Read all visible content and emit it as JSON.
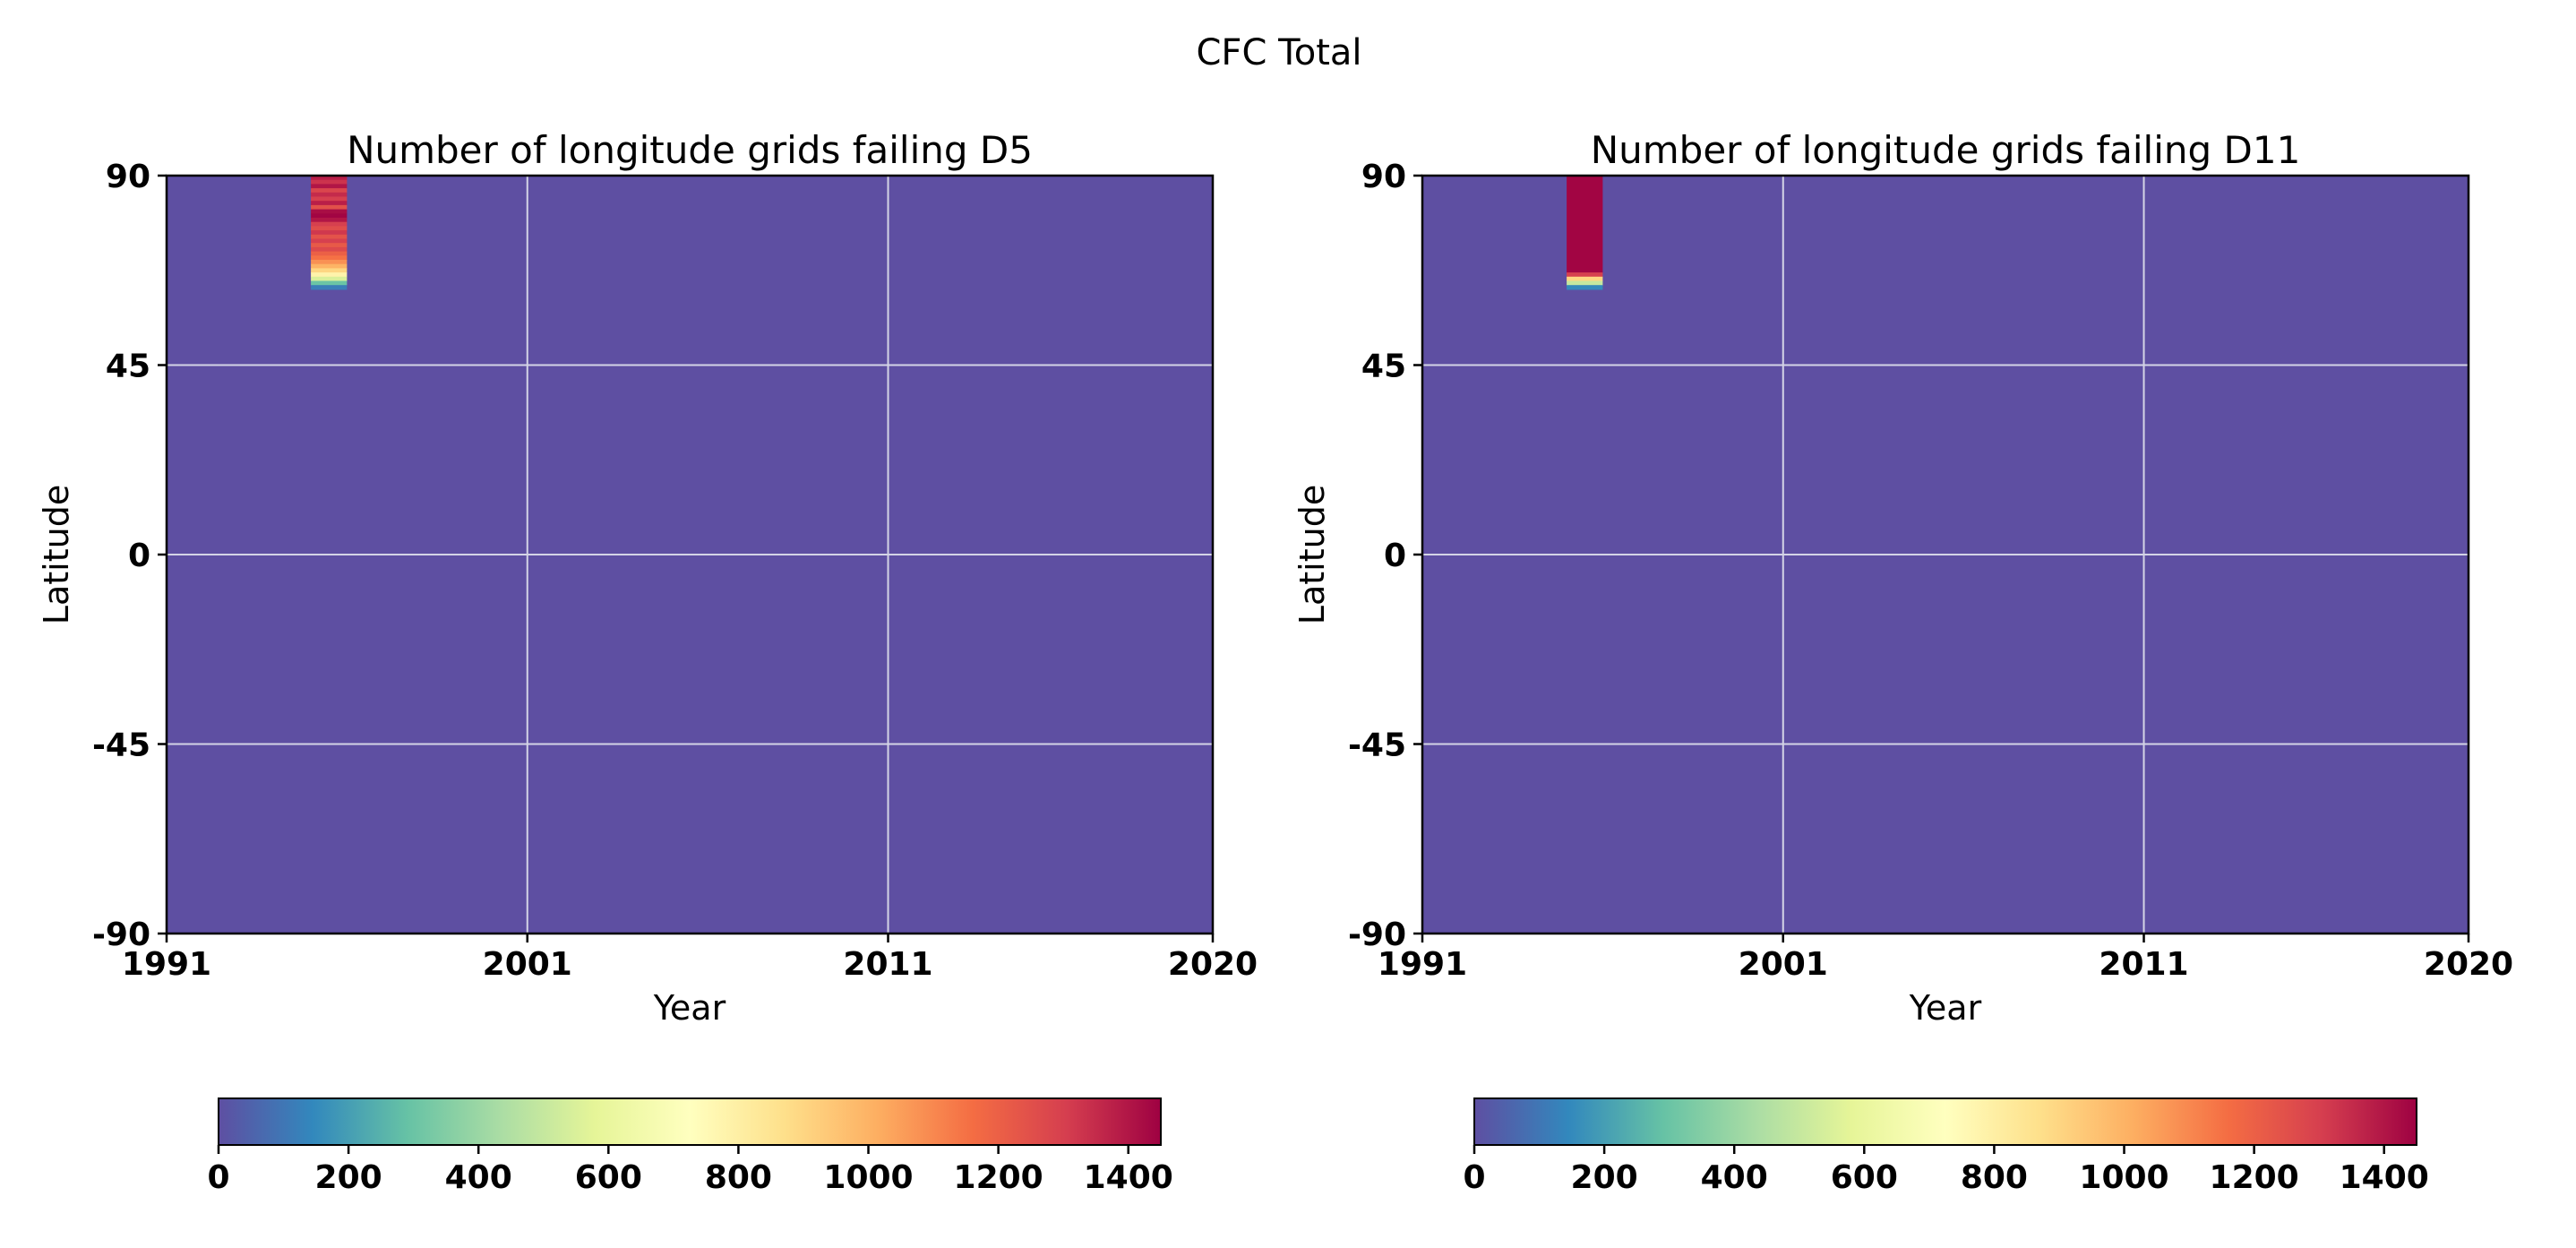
{
  "figure": {
    "suptitle": "CFC Total"
  },
  "colorbar": {
    "ticks": [
      "0",
      "200",
      "400",
      "600",
      "800",
      "1000",
      "1200",
      "1400"
    ],
    "tick_values": [
      0,
      200,
      400,
      600,
      800,
      1000,
      1200,
      1400
    ],
    "vmin": 0,
    "vmax": 1450,
    "colormap": "Spectral_r",
    "colormap_stops": [
      "#5e4fa2",
      "#3288bd",
      "#66c2a5",
      "#abdda4",
      "#e6f598",
      "#ffffbf",
      "#fee08b",
      "#fdae61",
      "#f46d43",
      "#d53e4f",
      "#9e0142"
    ]
  },
  "chart_data": [
    {
      "type": "heatmap",
      "title": "Number of longitude grids failing D5",
      "xlabel": "Year",
      "ylabel": "Latitude",
      "x_ticks": [
        "1991",
        "2001",
        "2011",
        "2020"
      ],
      "x_tick_values": [
        1991,
        2001,
        2011,
        2020
      ],
      "y_ticks": [
        "90",
        "45",
        "0",
        "-45",
        "-90"
      ],
      "y_tick_values": [
        90,
        45,
        0,
        -45,
        -90
      ],
      "xlim": [
        1991,
        2020
      ],
      "ylim": [
        -90,
        90
      ],
      "grid": true,
      "background_value": 0,
      "highlight_x": [
        1995.0,
        1996.0
      ],
      "bands": [
        {
          "lat": [
            89,
            90
          ],
          "value": 1380
        },
        {
          "lat": [
            88,
            89
          ],
          "value": 1330
        },
        {
          "lat": [
            87,
            88
          ],
          "value": 1400
        },
        {
          "lat": [
            86,
            87
          ],
          "value": 1280
        },
        {
          "lat": [
            85,
            86
          ],
          "value": 1350
        },
        {
          "lat": [
            84,
            85
          ],
          "value": 1300
        },
        {
          "lat": [
            83,
            84
          ],
          "value": 1380
        },
        {
          "lat": [
            82,
            83
          ],
          "value": 1250
        },
        {
          "lat": [
            81,
            82
          ],
          "value": 1420
        },
        {
          "lat": [
            80,
            81
          ],
          "value": 1440
        },
        {
          "lat": [
            79,
            80
          ],
          "value": 1400
        },
        {
          "lat": [
            78,
            79
          ],
          "value": 1300
        },
        {
          "lat": [
            77,
            78
          ],
          "value": 1260
        },
        {
          "lat": [
            76,
            77
          ],
          "value": 1320
        },
        {
          "lat": [
            75,
            76
          ],
          "value": 1240
        },
        {
          "lat": [
            74,
            75
          ],
          "value": 1300
        },
        {
          "lat": [
            73,
            74
          ],
          "value": 1220
        },
        {
          "lat": [
            72,
            73
          ],
          "value": 1270
        },
        {
          "lat": [
            71,
            72
          ],
          "value": 1200
        },
        {
          "lat": [
            70,
            71
          ],
          "value": 1150
        },
        {
          "lat": [
            69,
            70
          ],
          "value": 1080
        },
        {
          "lat": [
            68,
            69
          ],
          "value": 1000
        },
        {
          "lat": [
            67,
            68
          ],
          "value": 900
        },
        {
          "lat": [
            66,
            67
          ],
          "value": 780
        },
        {
          "lat": [
            65,
            66
          ],
          "value": 550
        },
        {
          "lat": [
            64,
            65
          ],
          "value": 300
        },
        {
          "lat": [
            63,
            64
          ],
          "value": 120
        }
      ]
    },
    {
      "type": "heatmap",
      "title": "Number of longitude grids failing D11",
      "xlabel": "Year",
      "ylabel": "Latitude",
      "x_ticks": [
        "1991",
        "2001",
        "2011",
        "2020"
      ],
      "x_tick_values": [
        1991,
        2001,
        2011,
        2020
      ],
      "y_ticks": [
        "90",
        "45",
        "0",
        "-45",
        "-90"
      ],
      "y_tick_values": [
        90,
        45,
        0,
        -45,
        -90
      ],
      "xlim": [
        1991,
        2020
      ],
      "ylim": [
        -90,
        90
      ],
      "grid": true,
      "background_value": 0,
      "highlight_x": [
        1995.0,
        1996.0
      ],
      "bands": [
        {
          "lat": [
            67,
            90
          ],
          "value": 1440
        },
        {
          "lat": [
            66,
            67
          ],
          "value": 1300
        },
        {
          "lat": [
            65,
            66
          ],
          "value": 900
        },
        {
          "lat": [
            64,
            65
          ],
          "value": 500
        },
        {
          "lat": [
            63,
            64
          ],
          "value": 150
        }
      ]
    }
  ]
}
